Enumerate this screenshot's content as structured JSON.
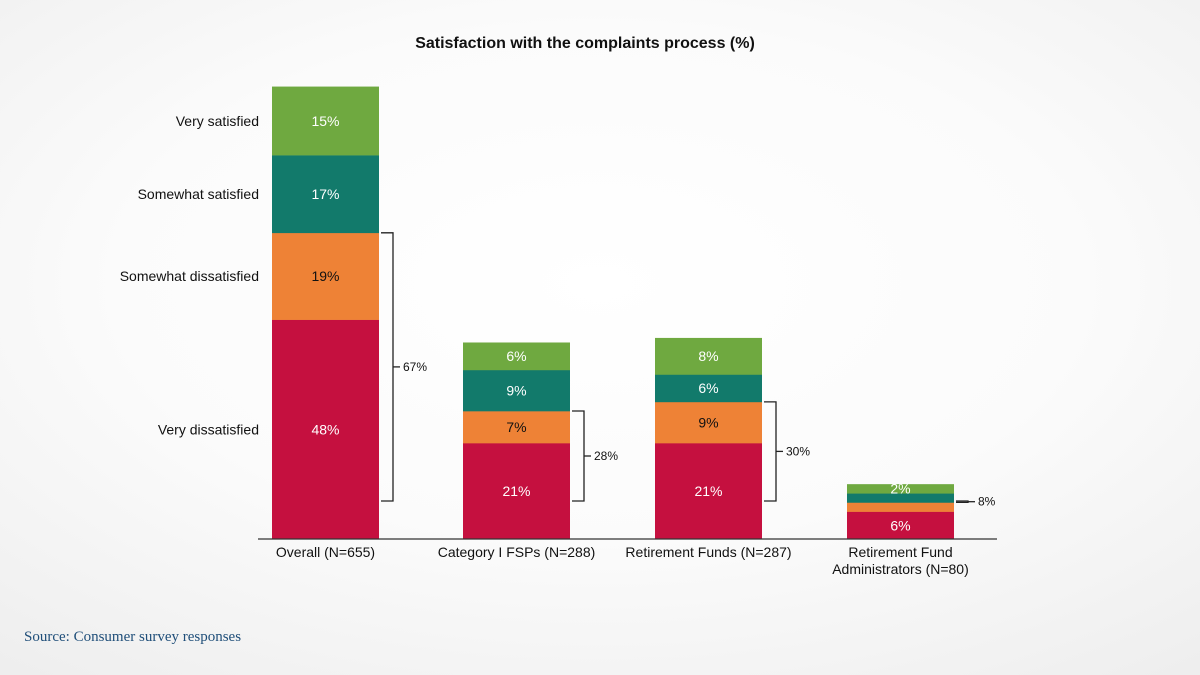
{
  "source": "Source: Consumer survey responses",
  "colors": {
    "very_satisfied": "#6fa940",
    "somewhat_satisfied": "#127a6b",
    "somewhat_dissatisfied": "#ee8236",
    "very_dissatisfied": "#c5103f"
  },
  "chart_data": {
    "type": "bar",
    "stacked": true,
    "title": "Satisfaction with the complaints process (%)",
    "xlabel": "",
    "ylabel": "",
    "categories": [
      "Overall (N=655)",
      "Category I FSPs (N=288)",
      "Retirement Funds (N=287)",
      "Retirement Fund Administrators (N=80)"
    ],
    "category_display_lines": [
      [
        "Overall (N=655)"
      ],
      [
        "Category I FSPs (N=288)"
      ],
      [
        "Retirement Funds (N=287)"
      ],
      [
        "Retirement Fund",
        "Administrators (N=80)"
      ]
    ],
    "series": [
      {
        "name": "Very dissatisfied",
        "values": [
          48,
          21,
          21,
          6
        ],
        "labels": [
          "48%",
          "21%",
          "21%",
          "6%"
        ]
      },
      {
        "name": "Somewhat dissatisfied",
        "values": [
          19,
          7,
          9,
          2
        ],
        "labels": [
          "19%",
          "7%",
          "9%",
          ""
        ]
      },
      {
        "name": "Somewhat satisfied",
        "values": [
          17,
          9,
          6,
          2
        ],
        "labels": [
          "17%",
          "9%",
          "6%",
          ""
        ]
      },
      {
        "name": "Very satisfied",
        "values": [
          15,
          6,
          8,
          2
        ],
        "labels": [
          "15%",
          "6%",
          "8%",
          "2%"
        ]
      }
    ],
    "dissatisfied_totals": [
      "67%",
      "28%",
      "30%",
      "8%"
    ],
    "ylim": [
      0,
      100
    ],
    "grid": false,
    "legend": "left"
  }
}
